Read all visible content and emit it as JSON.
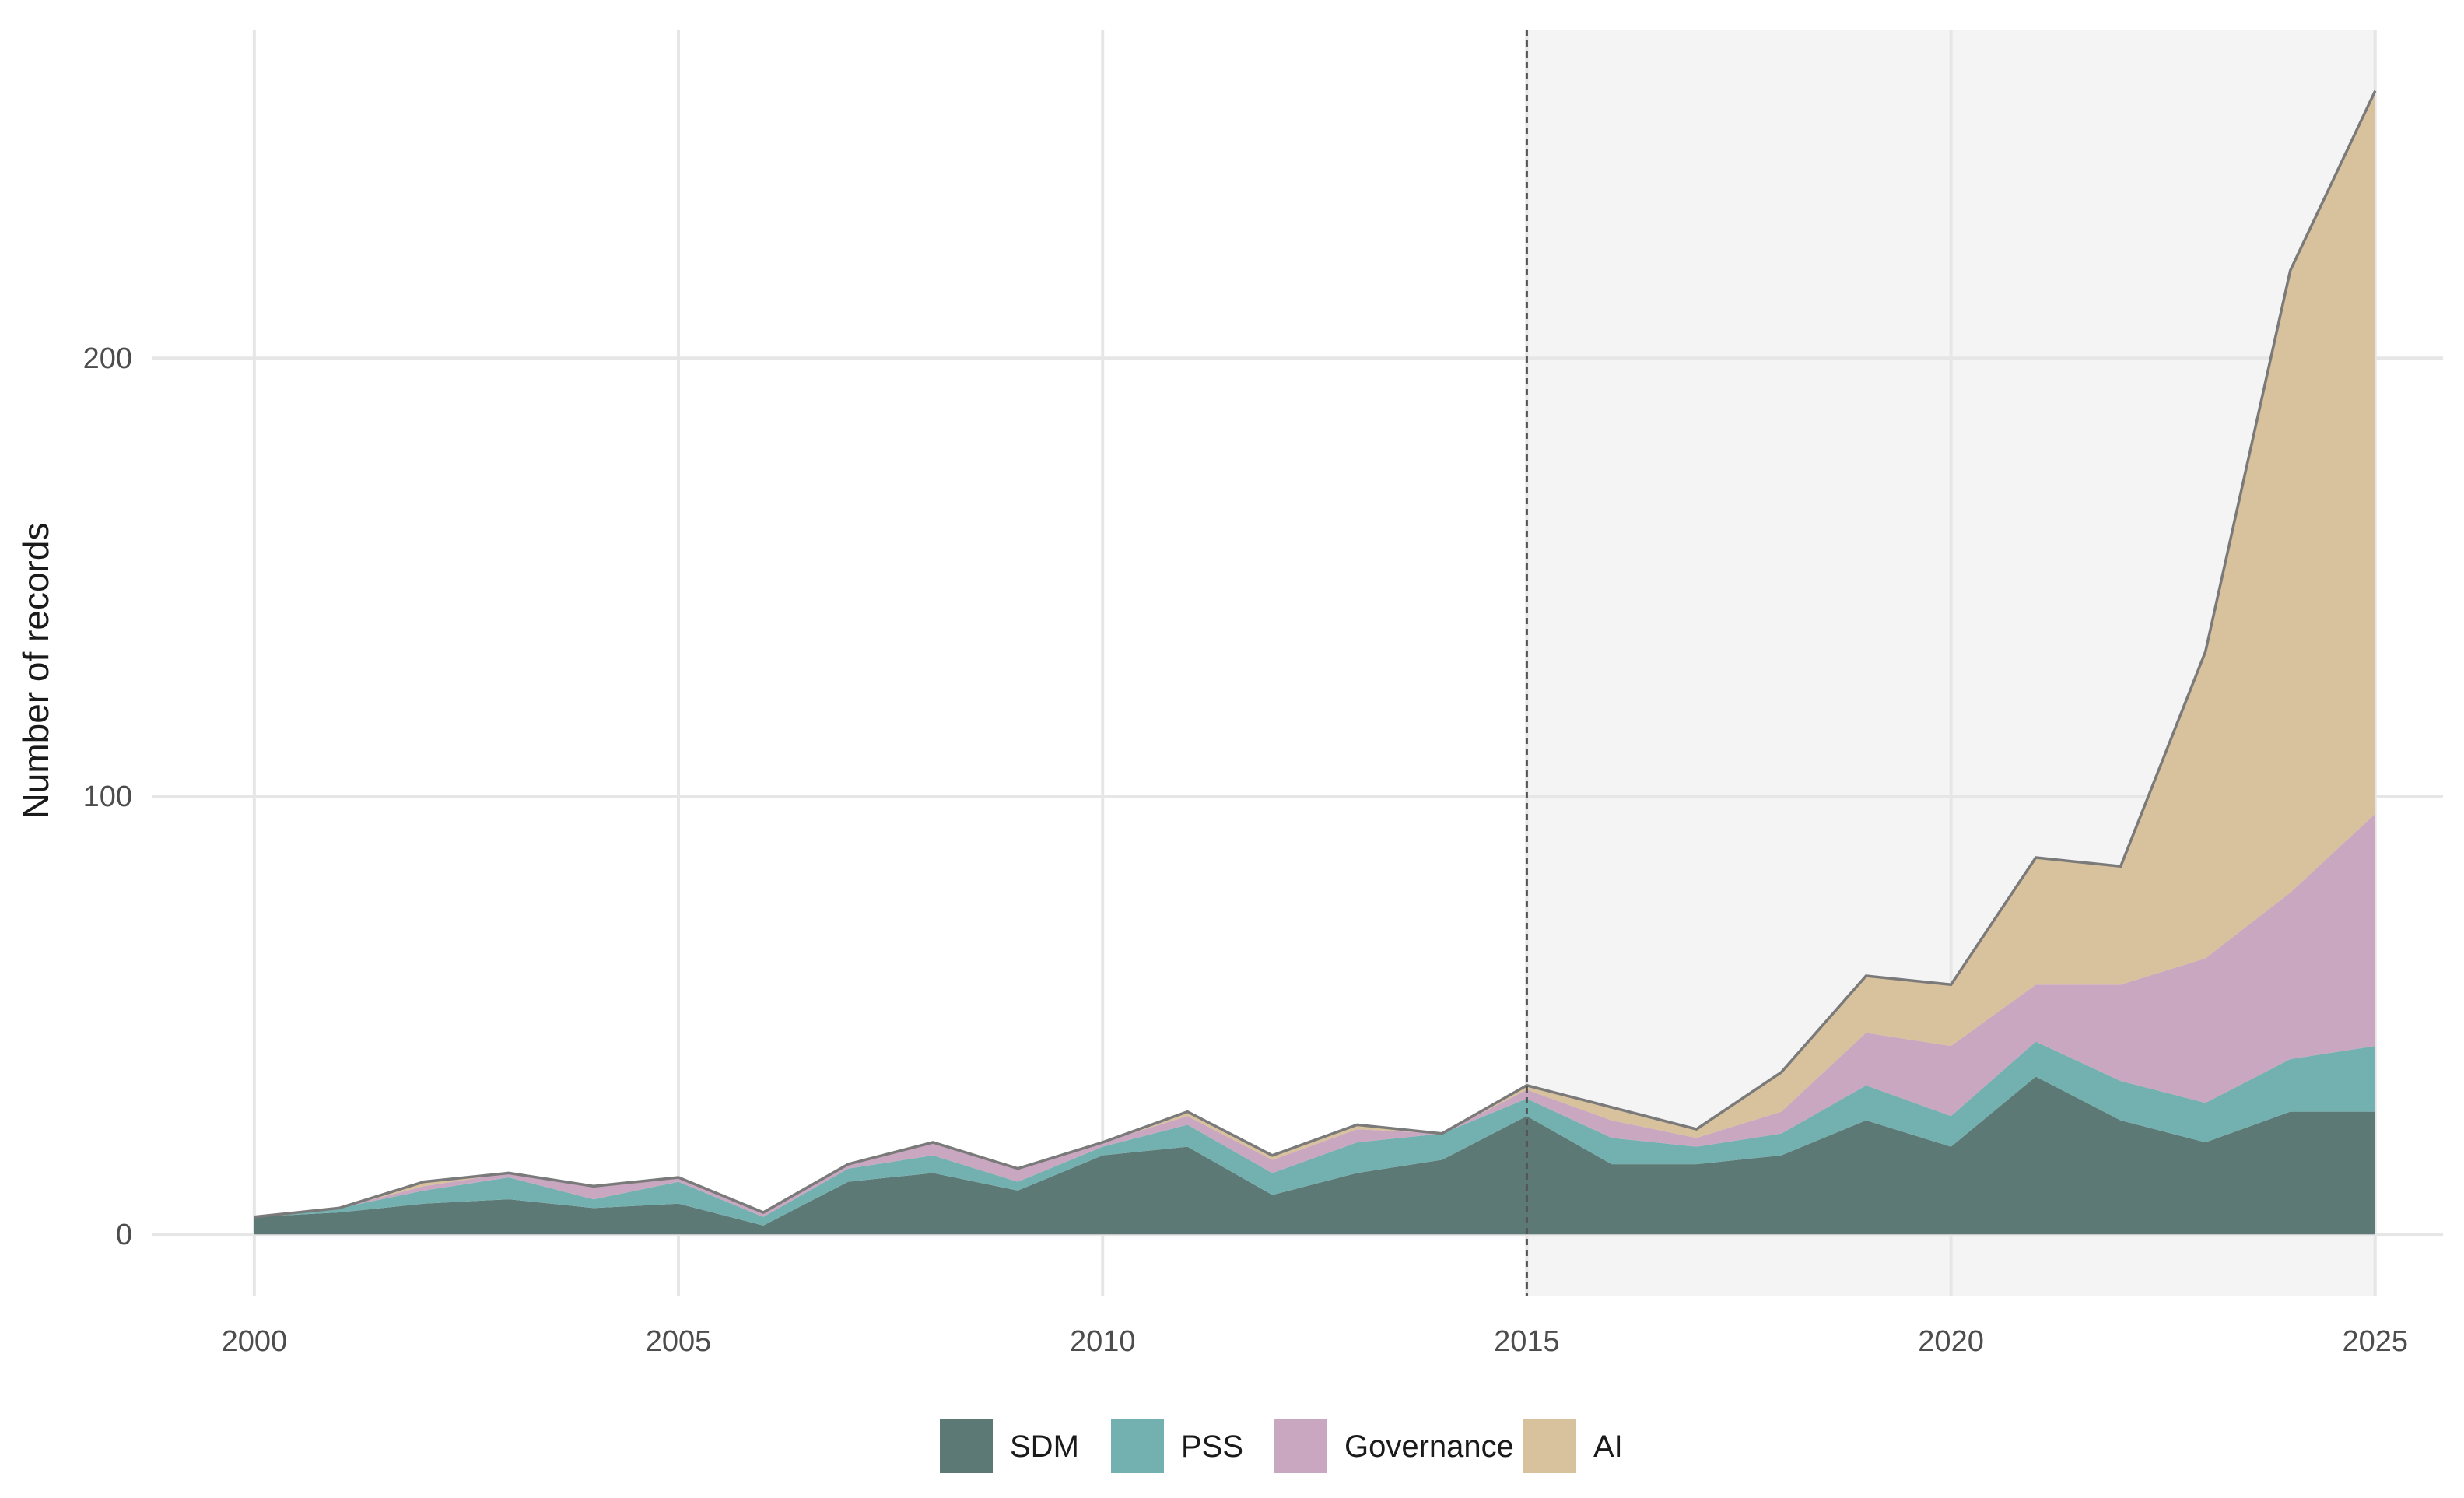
{
  "chart_data": {
    "type": "area",
    "stacked": true,
    "title": "",
    "xlabel": "",
    "ylabel": "Number of records",
    "x": [
      2000,
      2001,
      2002,
      2003,
      2004,
      2005,
      2006,
      2007,
      2008,
      2009,
      2010,
      2011,
      2012,
      2013,
      2014,
      2015,
      2016,
      2017,
      2018,
      2019,
      2020,
      2021,
      2022,
      2023,
      2024,
      2025
    ],
    "xlim": [
      1998.8,
      2025.8
    ],
    "ylim": [
      -14,
      275
    ],
    "xticks": [
      2000,
      2005,
      2010,
      2015,
      2020,
      2025
    ],
    "yticks": [
      0,
      100,
      200
    ],
    "grid": true,
    "highlight": {
      "from": 2015,
      "to": 2025,
      "color": "#f4f4f4"
    },
    "reference_line": {
      "x": 2015,
      "style": "dashed"
    },
    "legend_position": "bottom",
    "series": [
      {
        "name": "SDM",
        "color": "#5c7975",
        "values": [
          4,
          5,
          7,
          8,
          6,
          7,
          2,
          12,
          14,
          10,
          18,
          20,
          9,
          14,
          17,
          27,
          16,
          16,
          18,
          26,
          20,
          36,
          26,
          21,
          28,
          28
        ]
      },
      {
        "name": "PSS",
        "color": "#73b1b0",
        "values": [
          0,
          1,
          3,
          5,
          2,
          5,
          2,
          3,
          4,
          2,
          2,
          5,
          5,
          7,
          6,
          4,
          6,
          4,
          5,
          8,
          7,
          8,
          9,
          9,
          12,
          15
        ]
      },
      {
        "name": "Governance",
        "color": "#c9a7c0",
        "values": [
          0,
          0,
          1,
          1,
          3,
          1,
          1,
          1,
          3,
          3,
          1,
          2,
          3,
          3,
          0,
          2,
          4,
          2,
          5,
          12,
          16,
          13,
          22,
          33,
          38,
          53
        ]
      },
      {
        "name": "AI",
        "color": "#d8c19d",
        "values": [
          0,
          0,
          1,
          0,
          0,
          0,
          0,
          0,
          0,
          0,
          0,
          1,
          1,
          1,
          0,
          1,
          3,
          2,
          9,
          13,
          14,
          29,
          27,
          70,
          142,
          165
        ]
      }
    ]
  }
}
